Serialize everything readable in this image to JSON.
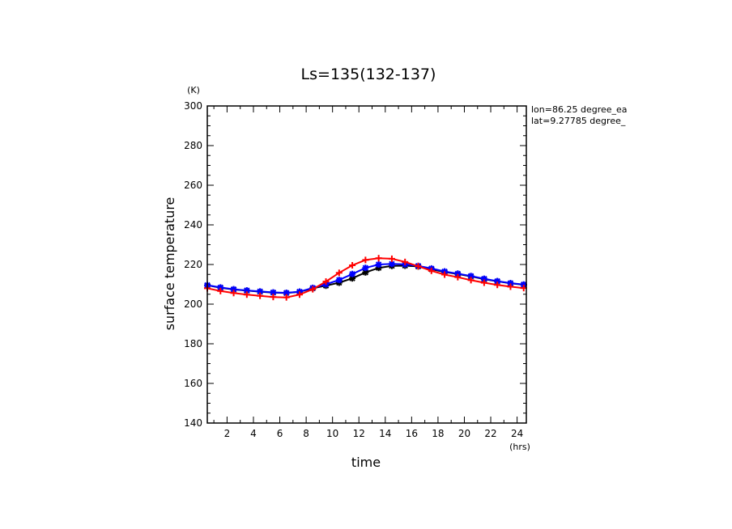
{
  "chart_data": {
    "type": "line",
    "title": "Ls=135(132-137)",
    "xlabel": "time",
    "xunit": "(hrs)",
    "ylabel": "surface temperature",
    "yunit": "(K)",
    "xlim": [
      0.5,
      24.7
    ],
    "ylim": [
      140,
      300
    ],
    "xticks": [
      2,
      4,
      6,
      8,
      10,
      12,
      14,
      16,
      18,
      20,
      22,
      24
    ],
    "yticks": [
      140,
      160,
      180,
      200,
      220,
      240,
      260,
      280,
      300
    ],
    "annotations": [
      "lon=86.25 degree_ea",
      "lat=9.27785 degree_"
    ],
    "x": [
      0.5,
      1.5,
      2.5,
      3.5,
      4.5,
      5.5,
      6.5,
      7.5,
      8.5,
      9.5,
      10.5,
      11.5,
      12.5,
      13.5,
      14.5,
      15.5,
      16.5,
      17.5,
      18.5,
      19.5,
      20.5,
      21.5,
      22.5,
      23.5,
      24.5
    ],
    "series": [
      {
        "color": "#000000",
        "marker": "star",
        "values": [
          209.5,
          208.3,
          207.4,
          206.8,
          206.3,
          205.8,
          205.6,
          206.2,
          208.0,
          209.3,
          210.8,
          213.0,
          216.0,
          218.3,
          219.3,
          219.4,
          219.0,
          217.6,
          216.2,
          215.2,
          214.0,
          212.6,
          211.5,
          210.5,
          209.8
        ]
      },
      {
        "color": "#0000ff",
        "marker": "star",
        "values": [
          209.6,
          208.4,
          207.5,
          206.9,
          206.4,
          205.9,
          205.7,
          206.3,
          208.2,
          210.0,
          212.2,
          215.2,
          218.3,
          220.0,
          220.3,
          220.1,
          219.3,
          218.0,
          216.5,
          215.4,
          214.2,
          212.8,
          211.6,
          210.6,
          209.9
        ]
      },
      {
        "color": "#ff0000",
        "marker": "plus",
        "values": [
          208.0,
          206.6,
          205.6,
          204.8,
          204.2,
          203.6,
          203.4,
          204.8,
          207.5,
          211.4,
          215.8,
          219.6,
          222.3,
          223.2,
          222.9,
          221.3,
          219.1,
          216.8,
          214.9,
          213.6,
          212.1,
          210.8,
          209.7,
          208.8,
          208.1
        ]
      }
    ]
  }
}
